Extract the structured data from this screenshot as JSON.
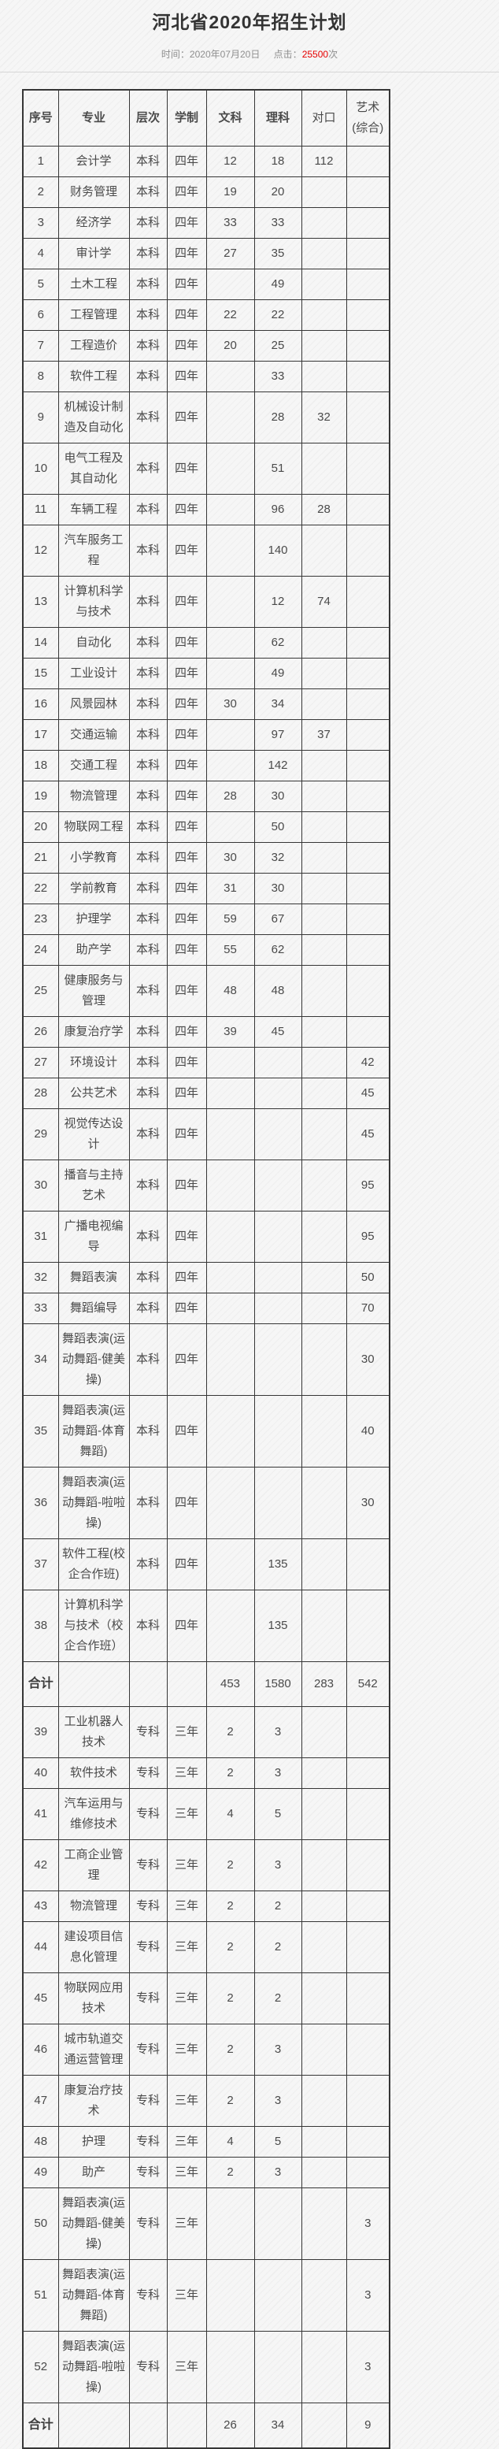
{
  "page": {
    "title": "河北省2020年招生计划",
    "meta": {
      "time_label": "时间：",
      "time_value": "2020年07月20日",
      "clicks_label": "点击：",
      "clicks_value": "25500",
      "clicks_suffix": "次"
    },
    "colors": {
      "clicks_accent": "#e60000",
      "table_border": "#363636",
      "text": "#4a4a4a"
    }
  },
  "table": {
    "columns": [
      "no",
      "major",
      "level",
      "years",
      "wenke",
      "like",
      "duikou",
      "yishu"
    ],
    "headers": [
      {
        "label": "序号",
        "bold": true
      },
      {
        "label": "专业",
        "bold": true
      },
      {
        "label": "层次",
        "bold": true
      },
      {
        "label": "学制",
        "bold": true
      },
      {
        "label": "文科",
        "bold": true
      },
      {
        "label": "理科",
        "bold": true
      },
      {
        "label": "对口",
        "bold": false
      },
      {
        "label": "艺术(综合)",
        "bold": false
      }
    ],
    "rows": [
      {
        "no": "1",
        "major": "会计学",
        "level": "本科",
        "years": "四年",
        "wenke": "12",
        "like": "18",
        "duikou": "112",
        "yishu": ""
      },
      {
        "no": "2",
        "major": "财务管理",
        "level": "本科",
        "years": "四年",
        "wenke": "19",
        "like": "20",
        "duikou": "",
        "yishu": ""
      },
      {
        "no": "3",
        "major": "经济学",
        "level": "本科",
        "years": "四年",
        "wenke": "33",
        "like": "33",
        "duikou": "",
        "yishu": ""
      },
      {
        "no": "4",
        "major": "审计学",
        "level": "本科",
        "years": "四年",
        "wenke": "27",
        "like": "35",
        "duikou": "",
        "yishu": ""
      },
      {
        "no": "5",
        "major": "土木工程",
        "level": "本科",
        "years": "四年",
        "wenke": "",
        "like": "49",
        "duikou": "",
        "yishu": ""
      },
      {
        "no": "6",
        "major": "工程管理",
        "level": "本科",
        "years": "四年",
        "wenke": "22",
        "like": "22",
        "duikou": "",
        "yishu": ""
      },
      {
        "no": "7",
        "major": "工程造价",
        "level": "本科",
        "years": "四年",
        "wenke": "20",
        "like": "25",
        "duikou": "",
        "yishu": ""
      },
      {
        "no": "8",
        "major": "软件工程",
        "level": "本科",
        "years": "四年",
        "wenke": "",
        "like": "33",
        "duikou": "",
        "yishu": ""
      },
      {
        "no": "9",
        "major": "机械设计制造及自动化",
        "level": "本科",
        "years": "四年",
        "wenke": "",
        "like": "28",
        "duikou": "32",
        "yishu": ""
      },
      {
        "no": "10",
        "major": "电气工程及其自动化",
        "level": "本科",
        "years": "四年",
        "wenke": "",
        "like": "51",
        "duikou": "",
        "yishu": ""
      },
      {
        "no": "11",
        "major": "车辆工程",
        "level": "本科",
        "years": "四年",
        "wenke": "",
        "like": "96",
        "duikou": "28",
        "yishu": ""
      },
      {
        "no": "12",
        "major": "汽车服务工程",
        "level": "本科",
        "years": "四年",
        "wenke": "",
        "like": "140",
        "duikou": "",
        "yishu": ""
      },
      {
        "no": "13",
        "major": "计算机科学与技术",
        "level": "本科",
        "years": "四年",
        "wenke": "",
        "like": "12",
        "duikou": "74",
        "yishu": ""
      },
      {
        "no": "14",
        "major": "自动化",
        "level": "本科",
        "years": "四年",
        "wenke": "",
        "like": "62",
        "duikou": "",
        "yishu": ""
      },
      {
        "no": "15",
        "major": "工业设计",
        "level": "本科",
        "years": "四年",
        "wenke": "",
        "like": "49",
        "duikou": "",
        "yishu": ""
      },
      {
        "no": "16",
        "major": "风景园林",
        "level": "本科",
        "years": "四年",
        "wenke": "30",
        "like": "34",
        "duikou": "",
        "yishu": ""
      },
      {
        "no": "17",
        "major": "交通运输",
        "level": "本科",
        "years": "四年",
        "wenke": "",
        "like": "97",
        "duikou": "37",
        "yishu": ""
      },
      {
        "no": "18",
        "major": "交通工程",
        "level": "本科",
        "years": "四年",
        "wenke": "",
        "like": "142",
        "duikou": "",
        "yishu": ""
      },
      {
        "no": "19",
        "major": "物流管理",
        "level": "本科",
        "years": "四年",
        "wenke": "28",
        "like": "30",
        "duikou": "",
        "yishu": ""
      },
      {
        "no": "20",
        "major": "物联网工程",
        "level": "本科",
        "years": "四年",
        "wenke": "",
        "like": "50",
        "duikou": "",
        "yishu": ""
      },
      {
        "no": "21",
        "major": "小学教育",
        "level": "本科",
        "years": "四年",
        "wenke": "30",
        "like": "32",
        "duikou": "",
        "yishu": ""
      },
      {
        "no": "22",
        "major": "学前教育",
        "level": "本科",
        "years": "四年",
        "wenke": "31",
        "like": "30",
        "duikou": "",
        "yishu": ""
      },
      {
        "no": "23",
        "major": "护理学",
        "level": "本科",
        "years": "四年",
        "wenke": "59",
        "like": "67",
        "duikou": "",
        "yishu": ""
      },
      {
        "no": "24",
        "major": "助产学",
        "level": "本科",
        "years": "四年",
        "wenke": "55",
        "like": "62",
        "duikou": "",
        "yishu": ""
      },
      {
        "no": "25",
        "major": "健康服务与管理",
        "level": "本科",
        "years": "四年",
        "wenke": "48",
        "like": "48",
        "duikou": "",
        "yishu": ""
      },
      {
        "no": "26",
        "major": "康复治疗学",
        "level": "本科",
        "years": "四年",
        "wenke": "39",
        "like": "45",
        "duikou": "",
        "yishu": ""
      },
      {
        "no": "27",
        "major": "环境设计",
        "level": "本科",
        "years": "四年",
        "wenke": "",
        "like": "",
        "duikou": "",
        "yishu": "42"
      },
      {
        "no": "28",
        "major": "公共艺术",
        "level": "本科",
        "years": "四年",
        "wenke": "",
        "like": "",
        "duikou": "",
        "yishu": "45"
      },
      {
        "no": "29",
        "major": "视觉传达设计",
        "level": "本科",
        "years": "四年",
        "wenke": "",
        "like": "",
        "duikou": "",
        "yishu": "45"
      },
      {
        "no": "30",
        "major": "播音与主持艺术",
        "level": "本科",
        "years": "四年",
        "wenke": "",
        "like": "",
        "duikou": "",
        "yishu": "95"
      },
      {
        "no": "31",
        "major": "广播电视编导",
        "level": "本科",
        "years": "四年",
        "wenke": "",
        "like": "",
        "duikou": "",
        "yishu": "95"
      },
      {
        "no": "32",
        "major": "舞蹈表演",
        "level": "本科",
        "years": "四年",
        "wenke": "",
        "like": "",
        "duikou": "",
        "yishu": "50"
      },
      {
        "no": "33",
        "major": "舞蹈编导",
        "level": "本科",
        "years": "四年",
        "wenke": "",
        "like": "",
        "duikou": "",
        "yishu": "70"
      },
      {
        "no": "34",
        "major": "舞蹈表演(运动舞蹈-健美操)",
        "level": "本科",
        "years": "四年",
        "wenke": "",
        "like": "",
        "duikou": "",
        "yishu": "30"
      },
      {
        "no": "35",
        "major": "舞蹈表演(运动舞蹈-体育舞蹈)",
        "level": "本科",
        "years": "四年",
        "wenke": "",
        "like": "",
        "duikou": "",
        "yishu": "40"
      },
      {
        "no": "36",
        "major": "舞蹈表演(运动舞蹈-啦啦操)",
        "level": "本科",
        "years": "四年",
        "wenke": "",
        "like": "",
        "duikou": "",
        "yishu": "30"
      },
      {
        "no": "37",
        "major": "软件工程(校企合作班)",
        "level": "本科",
        "years": "四年",
        "wenke": "",
        "like": "135",
        "duikou": "",
        "yishu": ""
      },
      {
        "no": "38",
        "major": "计算机科学与技术（校企合作班）",
        "level": "本科",
        "years": "四年",
        "wenke": "",
        "like": "135",
        "duikou": "",
        "yishu": ""
      },
      {
        "no": "合计",
        "major": "",
        "level": "",
        "years": "",
        "wenke": "453",
        "like": "1580",
        "duikou": "283",
        "yishu": "542",
        "is_total": true
      },
      {
        "no": "39",
        "major": "工业机器人技术",
        "level": "专科",
        "years": "三年",
        "wenke": "2",
        "like": "3",
        "duikou": "",
        "yishu": ""
      },
      {
        "no": "40",
        "major": "软件技术",
        "level": "专科",
        "years": "三年",
        "wenke": "2",
        "like": "3",
        "duikou": "",
        "yishu": ""
      },
      {
        "no": "41",
        "major": "汽车运用与维修技术",
        "level": "专科",
        "years": "三年",
        "wenke": "4",
        "like": "5",
        "duikou": "",
        "yishu": ""
      },
      {
        "no": "42",
        "major": "工商企业管理",
        "level": "专科",
        "years": "三年",
        "wenke": "2",
        "like": "3",
        "duikou": "",
        "yishu": ""
      },
      {
        "no": "43",
        "major": "物流管理",
        "level": "专科",
        "years": "三年",
        "wenke": "2",
        "like": "2",
        "duikou": "",
        "yishu": ""
      },
      {
        "no": "44",
        "major": "建设项目信息化管理",
        "level": "专科",
        "years": "三年",
        "wenke": "2",
        "like": "2",
        "duikou": "",
        "yishu": ""
      },
      {
        "no": "45",
        "major": "物联网应用技术",
        "level": "专科",
        "years": "三年",
        "wenke": "2",
        "like": "2",
        "duikou": "",
        "yishu": ""
      },
      {
        "no": "46",
        "major": "城市轨道交通运营管理",
        "level": "专科",
        "years": "三年",
        "wenke": "2",
        "like": "3",
        "duikou": "",
        "yishu": ""
      },
      {
        "no": "47",
        "major": "康复治疗技术",
        "level": "专科",
        "years": "三年",
        "wenke": "2",
        "like": "3",
        "duikou": "",
        "yishu": ""
      },
      {
        "no": "48",
        "major": "护理",
        "level": "专科",
        "years": "三年",
        "wenke": "4",
        "like": "5",
        "duikou": "",
        "yishu": ""
      },
      {
        "no": "49",
        "major": "助产",
        "level": "专科",
        "years": "三年",
        "wenke": "2",
        "like": "3",
        "duikou": "",
        "yishu": ""
      },
      {
        "no": "50",
        "major": "舞蹈表演(运动舞蹈-健美操)",
        "level": "专科",
        "years": "三年",
        "wenke": "",
        "like": "",
        "duikou": "",
        "yishu": "3"
      },
      {
        "no": "51",
        "major": "舞蹈表演(运动舞蹈-体育舞蹈)",
        "level": "专科",
        "years": "三年",
        "wenke": "",
        "like": "",
        "duikou": "",
        "yishu": "3"
      },
      {
        "no": "52",
        "major": "舞蹈表演(运动舞蹈-啦啦操)",
        "level": "专科",
        "years": "三年",
        "wenke": "",
        "like": "",
        "duikou": "",
        "yishu": "3"
      },
      {
        "no": "合计",
        "major": "",
        "level": "",
        "years": "",
        "wenke": "26",
        "like": "34",
        "duikou": "",
        "yishu": "9",
        "is_total": true
      }
    ]
  }
}
